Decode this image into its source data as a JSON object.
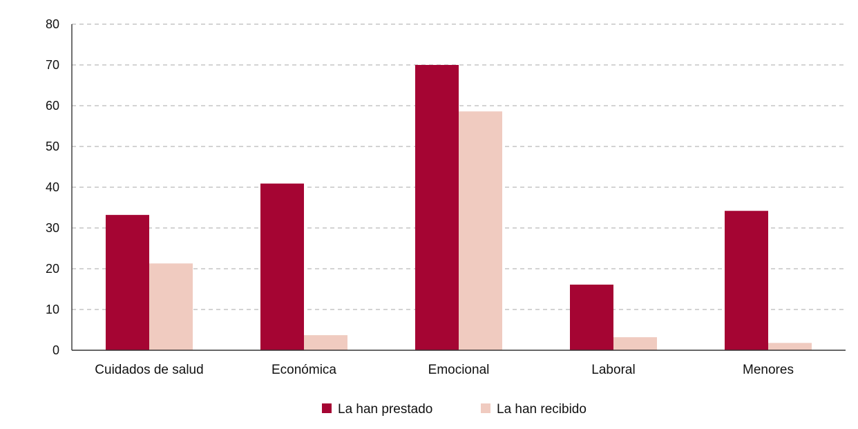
{
  "chart_data": {
    "type": "bar",
    "title": "",
    "xlabel": "",
    "ylabel": "",
    "categories": [
      "Cuidados de salud",
      "Económica",
      "Emocional",
      "Laboral",
      "Menores"
    ],
    "series": [
      {
        "name": "La han prestado",
        "color": "#a50533",
        "values": [
          33.2,
          40.9,
          70.0,
          16.1,
          34.2
        ]
      },
      {
        "name": "La han recibido",
        "color": "#f0cbc0",
        "values": [
          21.3,
          3.7,
          58.6,
          3.2,
          1.8
        ]
      }
    ],
    "ylim": [
      0,
      80
    ],
    "yticks": [
      0,
      10,
      20,
      30,
      40,
      50,
      60,
      70,
      80
    ],
    "grid": true,
    "grid_style": "dashed",
    "legend_position": "bottom"
  }
}
